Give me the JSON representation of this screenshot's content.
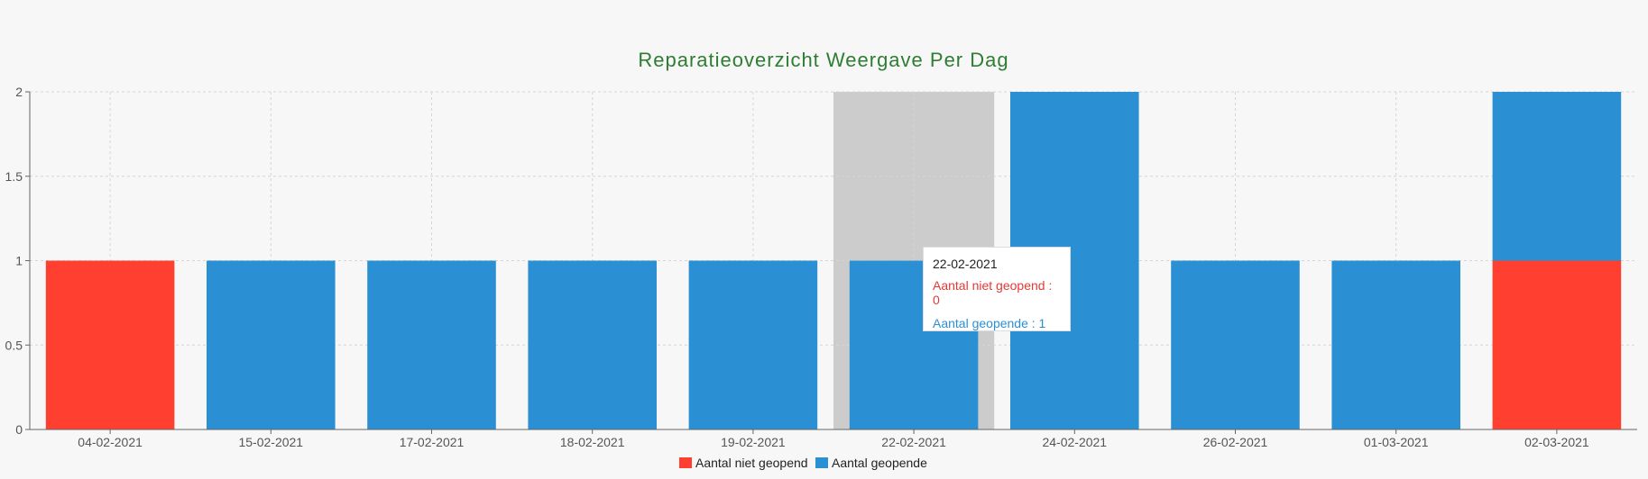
{
  "chart_data": {
    "type": "bar",
    "stacked": true,
    "title": "Reparatieoverzicht Weergave Per Dag",
    "categories": [
      "04-02-2021",
      "15-02-2021",
      "17-02-2021",
      "18-02-2021",
      "19-02-2021",
      "22-02-2021",
      "24-02-2021",
      "26-02-2021",
      "01-03-2021",
      "02-03-2021"
    ],
    "series": [
      {
        "name": "Aantal niet geopend",
        "color": "#ff3f2f",
        "values": [
          1,
          0,
          0,
          0,
          0,
          0,
          0,
          0,
          0,
          1
        ]
      },
      {
        "name": "Aantal geopende",
        "color": "#2a8fd3",
        "values": [
          0,
          1,
          1,
          1,
          1,
          1,
          2,
          1,
          1,
          1
        ]
      }
    ],
    "ylim": [
      0,
      2
    ],
    "yticks": [
      "0",
      "0.5",
      "1",
      "1.5",
      "2"
    ],
    "grid": true,
    "legend_position": "bottom",
    "highlighted_category": "22-02-2021",
    "title_color": "#2e7d32"
  },
  "tooltip": {
    "title": "22-02-2021",
    "lines": [
      {
        "text": "Aantal niet geopend : 0",
        "color": "#e53935"
      },
      {
        "text": "Aantal geopende : 1",
        "color": "#2a8fd3"
      }
    ]
  }
}
